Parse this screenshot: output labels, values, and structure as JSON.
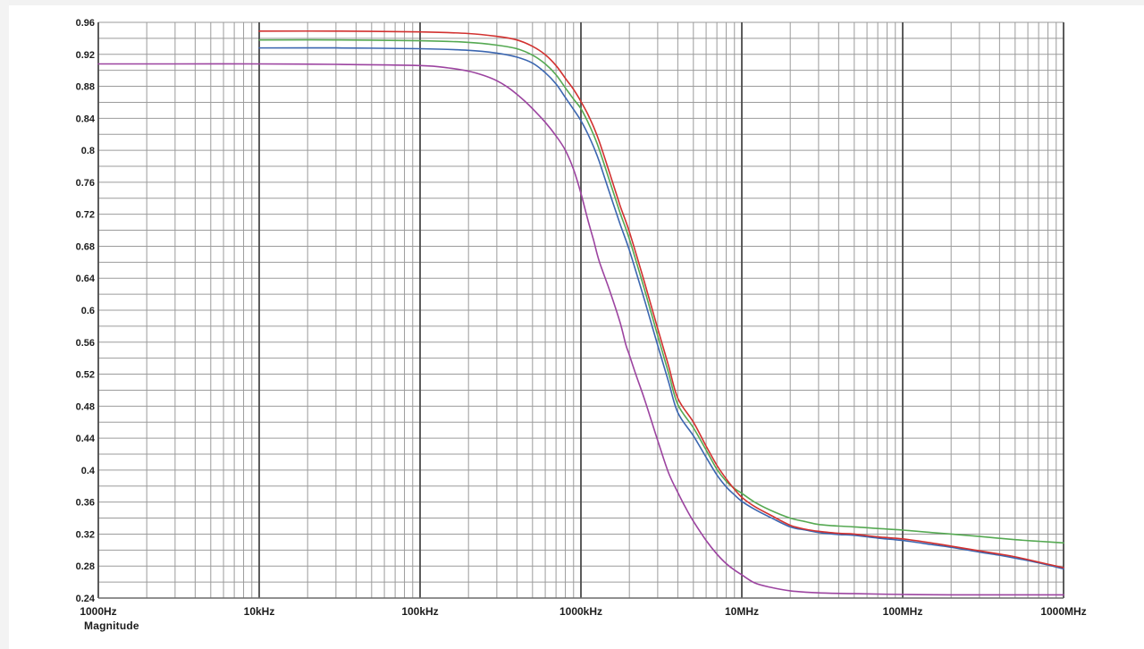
{
  "chart_data": {
    "type": "line",
    "title": "",
    "caption": "Magnitude",
    "legend": "none",
    "grid": "on",
    "background": "#ffffff",
    "grid_minor_color": "#9b9b9b",
    "grid_decade_color": "#4a4a4a",
    "axis_text_color": "#1c1c1c",
    "x_axis": {
      "scale": "log",
      "min_hz": 1000,
      "max_hz": 1000000000,
      "ticks": [
        {
          "hz": 1000,
          "label": "1000Hz"
        },
        {
          "hz": 10000,
          "label": "10kHz"
        },
        {
          "hz": 100000,
          "label": "100kHz"
        },
        {
          "hz": 1000000,
          "label": "1000kHz"
        },
        {
          "hz": 10000000,
          "label": "10MHz"
        },
        {
          "hz": 100000000,
          "label": "100MHz"
        },
        {
          "hz": 1000000000,
          "label": "1000MHz"
        }
      ]
    },
    "y_axis": {
      "min": 0.24,
      "max": 0.96,
      "minor_step": 0.02,
      "label_step": 0.04,
      "tick_labels": [
        "0.96",
        "0.92",
        "0.88",
        "0.84",
        "0.8",
        "0.76",
        "0.72",
        "0.68",
        "0.64",
        "0.6",
        "0.56",
        "0.52",
        "0.48",
        "0.44",
        "0.4",
        "0.36",
        "0.32",
        "0.28",
        "0.24"
      ]
    },
    "ylim": [
      0.24,
      0.96
    ],
    "series": [
      {
        "name": "trace-purple",
        "color": "#9c44a0",
        "points": [
          [
            1000,
            0.908
          ],
          [
            3000,
            0.908
          ],
          [
            10000,
            0.908
          ],
          [
            30000,
            0.9075
          ],
          [
            100000,
            0.906
          ],
          [
            150000,
            0.903
          ],
          [
            200000,
            0.899
          ],
          [
            250000,
            0.8935
          ],
          [
            300000,
            0.887
          ],
          [
            350000,
            0.879
          ],
          [
            400000,
            0.87
          ],
          [
            450000,
            0.861
          ],
          [
            500000,
            0.852
          ],
          [
            600000,
            0.835
          ],
          [
            700000,
            0.818
          ],
          [
            800000,
            0.8
          ],
          [
            900000,
            0.776
          ],
          [
            1000000,
            0.746
          ],
          [
            1100000,
            0.714
          ],
          [
            1200000,
            0.687
          ],
          [
            1300000,
            0.661
          ],
          [
            1500000,
            0.626
          ],
          [
            1750000,
            0.585
          ],
          [
            1900000,
            0.557
          ],
          [
            2000000,
            0.544
          ],
          [
            2200000,
            0.519
          ],
          [
            2500000,
            0.487
          ],
          [
            3000000,
            0.437
          ],
          [
            3500000,
            0.397
          ],
          [
            4000000,
            0.372
          ],
          [
            4500000,
            0.352
          ],
          [
            5000000,
            0.336
          ],
          [
            6000000,
            0.312
          ],
          [
            7000000,
            0.295
          ],
          [
            8000000,
            0.283
          ],
          [
            9000000,
            0.275
          ],
          [
            10000000,
            0.269
          ],
          [
            12000000,
            0.259
          ],
          [
            15000000,
            0.2535
          ],
          [
            20000000,
            0.249
          ],
          [
            30000000,
            0.2465
          ],
          [
            50000000,
            0.2455
          ],
          [
            100000000,
            0.2445
          ],
          [
            200000000,
            0.244
          ],
          [
            500000000,
            0.244
          ],
          [
            1000000000,
            0.244
          ]
        ]
      },
      {
        "name": "trace-blue",
        "color": "#3b66b0",
        "points": [
          [
            10000,
            0.928
          ],
          [
            30000,
            0.928
          ],
          [
            100000,
            0.927
          ],
          [
            200000,
            0.925
          ],
          [
            300000,
            0.9215
          ],
          [
            400000,
            0.9165
          ],
          [
            500000,
            0.909
          ],
          [
            600000,
            0.897
          ],
          [
            700000,
            0.883
          ],
          [
            800000,
            0.866
          ],
          [
            900000,
            0.851
          ],
          [
            1000000,
            0.837
          ],
          [
            1100000,
            0.821
          ],
          [
            1200000,
            0.804
          ],
          [
            1300000,
            0.786
          ],
          [
            1500000,
            0.748
          ],
          [
            1750000,
            0.708
          ],
          [
            2000000,
            0.675
          ],
          [
            2500000,
            0.611
          ],
          [
            3000000,
            0.556
          ],
          [
            3500000,
            0.511
          ],
          [
            4000000,
            0.472
          ],
          [
            5000000,
            0.443
          ],
          [
            6000000,
            0.416
          ],
          [
            7000000,
            0.394
          ],
          [
            8000000,
            0.379
          ],
          [
            9000000,
            0.369
          ],
          [
            10000000,
            0.361
          ],
          [
            12000000,
            0.351
          ],
          [
            15000000,
            0.341
          ],
          [
            20000000,
            0.329
          ],
          [
            25000000,
            0.325
          ],
          [
            30000000,
            0.322
          ],
          [
            40000000,
            0.3195
          ],
          [
            50000000,
            0.3185
          ],
          [
            70000000,
            0.315
          ],
          [
            100000000,
            0.312
          ],
          [
            150000000,
            0.307
          ],
          [
            200000000,
            0.3035
          ],
          [
            300000000,
            0.2975
          ],
          [
            400000000,
            0.2935
          ],
          [
            500000000,
            0.29
          ],
          [
            700000000,
            0.284
          ],
          [
            1000000000,
            0.2765
          ]
        ]
      },
      {
        "name": "trace-green",
        "color": "#55a952",
        "points": [
          [
            10000,
            0.938
          ],
          [
            30000,
            0.938
          ],
          [
            100000,
            0.937
          ],
          [
            200000,
            0.935
          ],
          [
            300000,
            0.9315
          ],
          [
            400000,
            0.927
          ],
          [
            500000,
            0.919
          ],
          [
            600000,
            0.908
          ],
          [
            700000,
            0.8945
          ],
          [
            800000,
            0.878
          ],
          [
            900000,
            0.864
          ],
          [
            1000000,
            0.852
          ],
          [
            1100000,
            0.836
          ],
          [
            1200000,
            0.819
          ],
          [
            1300000,
            0.801
          ],
          [
            1500000,
            0.763
          ],
          [
            1750000,
            0.722
          ],
          [
            2000000,
            0.689
          ],
          [
            2500000,
            0.624
          ],
          [
            3000000,
            0.568
          ],
          [
            3500000,
            0.522
          ],
          [
            4000000,
            0.482
          ],
          [
            5000000,
            0.453
          ],
          [
            6000000,
            0.425
          ],
          [
            7000000,
            0.401
          ],
          [
            8000000,
            0.386
          ],
          [
            9000000,
            0.377
          ],
          [
            10000000,
            0.371
          ],
          [
            12000000,
            0.36
          ],
          [
            15000000,
            0.35
          ],
          [
            20000000,
            0.34
          ],
          [
            25000000,
            0.3355
          ],
          [
            30000000,
            0.332
          ],
          [
            40000000,
            0.33
          ],
          [
            50000000,
            0.329
          ],
          [
            70000000,
            0.327
          ],
          [
            100000000,
            0.325
          ],
          [
            150000000,
            0.322
          ],
          [
            200000000,
            0.32
          ],
          [
            300000000,
            0.317
          ],
          [
            500000000,
            0.313
          ],
          [
            700000000,
            0.311
          ],
          [
            1000000000,
            0.309
          ]
        ]
      },
      {
        "name": "trace-red",
        "color": "#d23230",
        "points": [
          [
            10000,
            0.949
          ],
          [
            30000,
            0.949
          ],
          [
            100000,
            0.948
          ],
          [
            200000,
            0.946
          ],
          [
            300000,
            0.9425
          ],
          [
            400000,
            0.938
          ],
          [
            500000,
            0.93
          ],
          [
            600000,
            0.9195
          ],
          [
            700000,
            0.906
          ],
          [
            800000,
            0.89
          ],
          [
            900000,
            0.876
          ],
          [
            1000000,
            0.861
          ],
          [
            1100000,
            0.8455
          ],
          [
            1200000,
            0.829
          ],
          [
            1300000,
            0.811
          ],
          [
            1500000,
            0.773
          ],
          [
            1750000,
            0.731
          ],
          [
            2000000,
            0.698
          ],
          [
            2500000,
            0.633
          ],
          [
            3000000,
            0.577
          ],
          [
            3500000,
            0.531
          ],
          [
            4000000,
            0.49
          ],
          [
            5000000,
            0.46
          ],
          [
            6000000,
            0.43
          ],
          [
            7000000,
            0.406
          ],
          [
            8000000,
            0.389
          ],
          [
            9000000,
            0.376
          ],
          [
            10000000,
            0.366
          ],
          [
            12000000,
            0.3545
          ],
          [
            15000000,
            0.344
          ],
          [
            20000000,
            0.331
          ],
          [
            25000000,
            0.326
          ],
          [
            30000000,
            0.3235
          ],
          [
            40000000,
            0.321
          ],
          [
            50000000,
            0.32
          ],
          [
            70000000,
            0.3165
          ],
          [
            100000000,
            0.314
          ],
          [
            150000000,
            0.309
          ],
          [
            200000000,
            0.305
          ],
          [
            300000000,
            0.299
          ],
          [
            400000000,
            0.295
          ],
          [
            500000000,
            0.2915
          ],
          [
            700000000,
            0.285
          ],
          [
            1000000000,
            0.278
          ]
        ]
      }
    ]
  }
}
